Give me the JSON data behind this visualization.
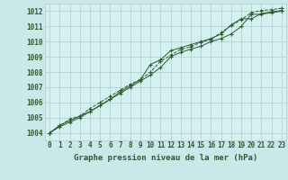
{
  "bg_color": "#cbe8e8",
  "plot_bg_color": "#d5f0f0",
  "grid_color": "#b0cccc",
  "line_color": "#2d5a2d",
  "title": "Graphe pression niveau de la mer (hPa)",
  "ylim": [
    1003.5,
    1012.5
  ],
  "xlim": [
    -0.5,
    23.5
  ],
  "yticks": [
    1004,
    1005,
    1006,
    1007,
    1008,
    1009,
    1010,
    1011,
    1012
  ],
  "xticks": [
    0,
    1,
    2,
    3,
    4,
    5,
    6,
    7,
    8,
    9,
    10,
    11,
    12,
    13,
    14,
    15,
    16,
    17,
    18,
    19,
    20,
    21,
    22,
    23
  ],
  "series1_x": [
    0,
    1,
    2,
    3,
    4,
    5,
    6,
    7,
    8,
    9,
    10,
    11,
    12,
    13,
    14,
    15,
    16,
    17,
    18,
    19,
    20,
    21,
    22,
    23
  ],
  "series1_y": [
    1004.0,
    1004.4,
    1004.7,
    1005.0,
    1005.4,
    1005.8,
    1006.2,
    1006.6,
    1007.0,
    1007.4,
    1007.8,
    1008.3,
    1009.0,
    1009.3,
    1009.5,
    1009.7,
    1010.0,
    1010.2,
    1010.5,
    1011.0,
    1011.8,
    1011.8,
    1011.9,
    1012.0
  ],
  "series2_x": [
    0,
    1,
    2,
    3,
    4,
    5,
    6,
    7,
    8,
    9,
    10,
    11,
    12,
    13,
    14,
    15,
    16,
    17,
    18,
    19,
    20,
    21,
    22,
    23
  ],
  "series2_y": [
    1004.0,
    1004.5,
    1004.8,
    1005.1,
    1005.4,
    1005.8,
    1006.2,
    1006.7,
    1007.1,
    1007.5,
    1008.5,
    1008.8,
    1009.4,
    1009.6,
    1009.8,
    1010.0,
    1010.2,
    1010.5,
    1011.1,
    1011.5,
    1011.5,
    1011.85,
    1011.95,
    1012.05
  ],
  "series3_x": [
    0,
    2,
    3,
    4,
    5,
    6,
    7,
    8,
    9,
    10,
    11,
    12,
    13,
    14,
    15,
    16,
    17,
    18,
    19,
    20,
    21,
    22,
    23
  ],
  "series3_y": [
    1004.0,
    1004.9,
    1005.1,
    1005.6,
    1006.0,
    1006.4,
    1006.8,
    1007.2,
    1007.5,
    1008.0,
    1008.7,
    1009.1,
    1009.5,
    1009.65,
    1009.95,
    1010.15,
    1010.6,
    1011.05,
    1011.45,
    1011.9,
    1012.05,
    1012.1,
    1012.2
  ],
  "tick_fontsize": 5.5,
  "title_fontsize": 6.5
}
